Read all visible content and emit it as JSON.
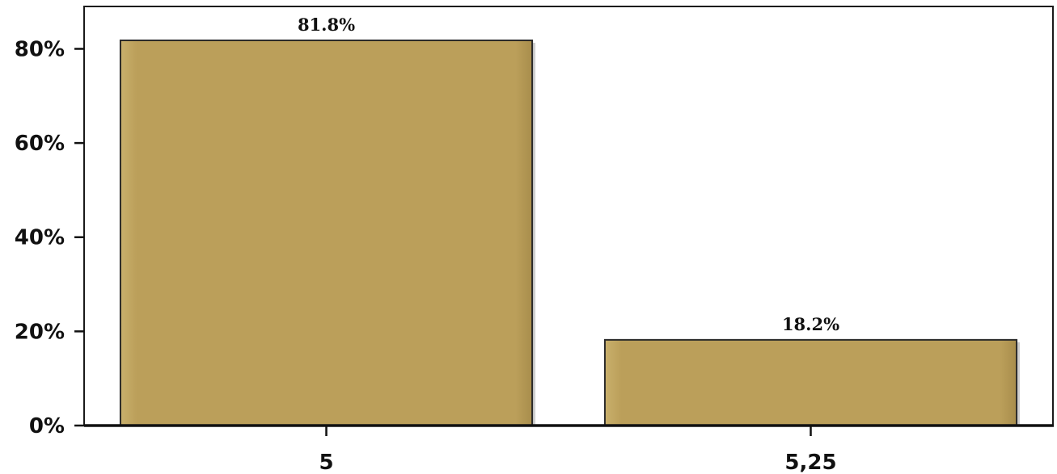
{
  "chart_data": {
    "type": "bar",
    "title": "",
    "xlabel": "",
    "ylabel": "",
    "categories": [
      "5",
      "5,25"
    ],
    "values": [
      81.8,
      18.2
    ],
    "data_labels": [
      "81.8%",
      "18.2%"
    ],
    "yticks": [
      0,
      20,
      40,
      60,
      80
    ],
    "ytick_labels": [
      "0%",
      "20%",
      "40%",
      "60%",
      "80%"
    ],
    "ylim": [
      0,
      89
    ],
    "grid": false,
    "legend": "none",
    "bar_color": "#bb9f5a",
    "bar_edge_color": "#2a2a2a"
  }
}
